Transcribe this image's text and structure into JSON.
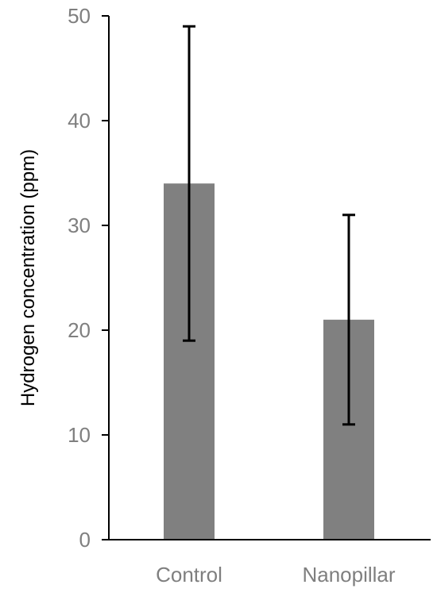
{
  "chart_data": {
    "type": "bar",
    "title": "",
    "xlabel": "",
    "ylabel": "Hydrogen concentration (ppm)",
    "categories": [
      "Control",
      "Nanopillar"
    ],
    "values": [
      34,
      21
    ],
    "error_low": [
      19,
      11
    ],
    "error_high": [
      49,
      31
    ],
    "ylim": [
      0,
      50
    ],
    "yticks": [
      "0",
      "10",
      "20",
      "30",
      "40",
      "50"
    ],
    "grid": false,
    "legend": "none",
    "bar_color": "#808080",
    "error_bar_color": "#000000",
    "axis_color": "#000000",
    "tick_label_color": "#7f7f7f"
  }
}
